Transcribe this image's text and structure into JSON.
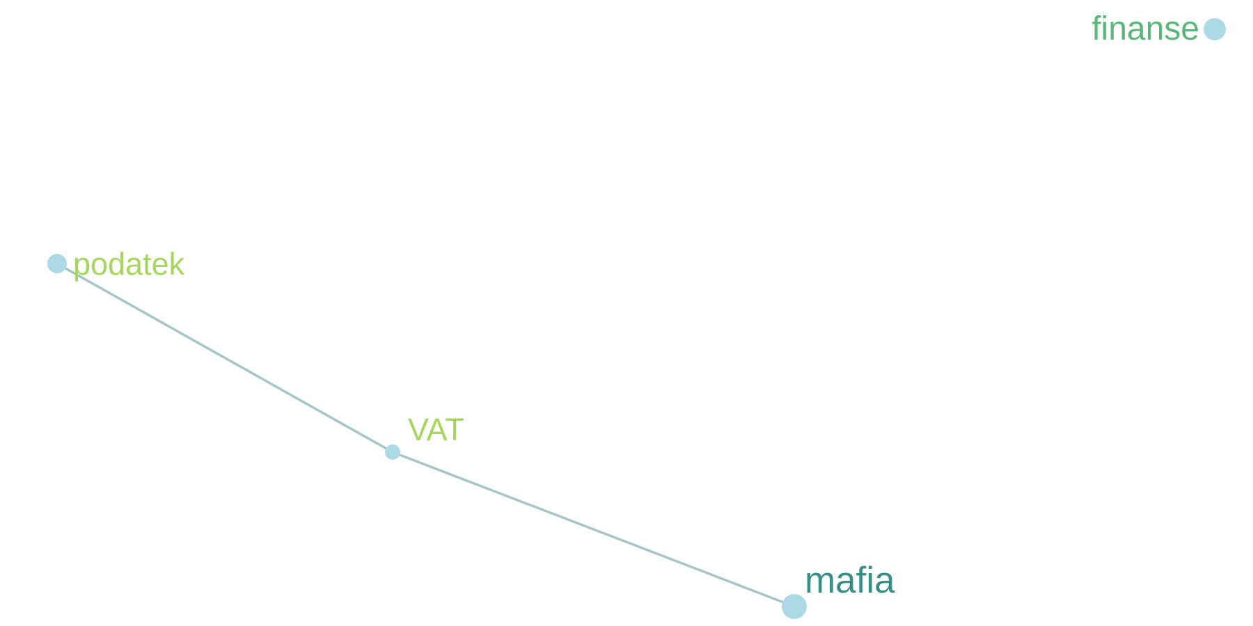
{
  "graph": {
    "nodes": [
      {
        "id": "finanse",
        "label": "finanse",
        "color": "#5ab779"
      },
      {
        "id": "podatek",
        "label": "podatek",
        "color": "#a6d65e"
      },
      {
        "id": "vat",
        "label": "VAT",
        "color": "#a6d65e"
      },
      {
        "id": "mafia",
        "label": "mafia",
        "color": "#3a8f85"
      }
    ],
    "edges": [
      {
        "source": "podatek",
        "target": "vat"
      },
      {
        "source": "vat",
        "target": "mafia"
      }
    ],
    "edge_color": "#a7c5c5",
    "node_fill_color": "#add8e6"
  }
}
